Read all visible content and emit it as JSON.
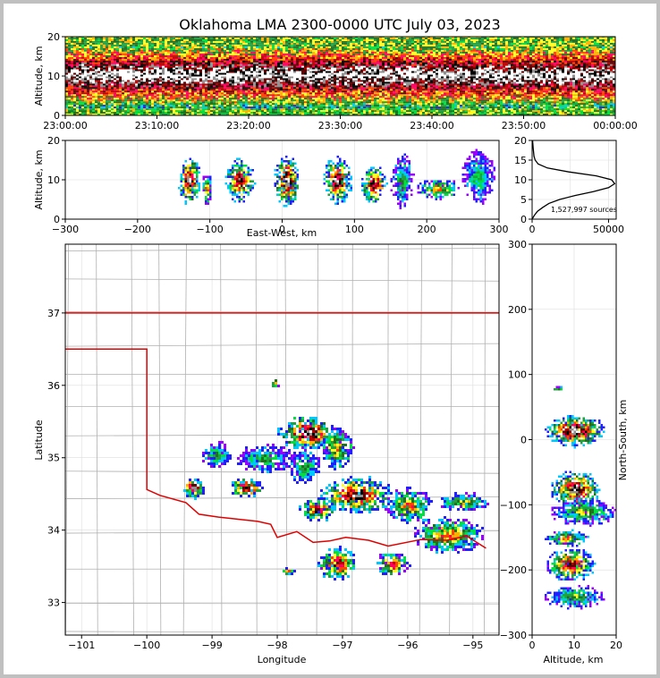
{
  "title": "Oklahoma LMA 2300-0000 UTC July 03, 2023",
  "colors": {
    "frame": "#c0c0c0",
    "state_border": "#e00000",
    "county": "#b0b0b0",
    "grid": "#dddddd",
    "density_scale": [
      "#9a00ff",
      "#2020ff",
      "#00c8ff",
      "#00e040",
      "#20a040",
      "#207020",
      "#ffff20",
      "#ffb000",
      "#ff4000",
      "#ff0060",
      "#c00000",
      "#600000",
      "#000000",
      "#909090",
      "#ffffff"
    ]
  },
  "chart_data": [
    {
      "id": "time-height",
      "type": "heatmap",
      "ylabel": "Altitude, km",
      "ylim": [
        0,
        20
      ],
      "yticks": [
        0,
        10,
        20
      ],
      "xticks": [
        "23:00:00",
        "23:10:00",
        "23:20:00",
        "23:30:00",
        "23:40:00",
        "23:50:00",
        "00:00:00"
      ],
      "dense_layer_km": [
        5,
        15
      ],
      "peak_altitude_km": 10
    },
    {
      "id": "ew-height",
      "type": "heatmap",
      "xlabel": "East-West, km",
      "ylabel": "Altitude, km",
      "xlim": [
        -300,
        300
      ],
      "ylim": [
        0,
        20
      ],
      "xticks": [
        -300,
        -200,
        -100,
        0,
        100,
        200,
        300
      ],
      "yticks": [
        0,
        10,
        20
      ],
      "cells": [
        {
          "x": -130,
          "z": 10,
          "w": 30,
          "h": 12,
          "v": 0.95
        },
        {
          "x": -105,
          "z": 8,
          "w": 12,
          "h": 8,
          "v": 0.55
        },
        {
          "x": -60,
          "z": 10,
          "w": 40,
          "h": 11,
          "v": 0.85
        },
        {
          "x": 5,
          "z": 10,
          "w": 35,
          "h": 13,
          "v": 0.98
        },
        {
          "x": 75,
          "z": 10,
          "w": 40,
          "h": 12,
          "v": 0.92
        },
        {
          "x": 125,
          "z": 9,
          "w": 35,
          "h": 10,
          "v": 0.88
        },
        {
          "x": 215,
          "z": 8,
          "w": 60,
          "h": 5,
          "v": 0.55
        },
        {
          "x": 270,
          "z": 11,
          "w": 45,
          "h": 14,
          "v": 0.3
        },
        {
          "x": 165,
          "z": 10,
          "w": 30,
          "h": 14,
          "v": 0.35
        }
      ]
    },
    {
      "id": "altitude-histogram",
      "type": "line",
      "xlim": [
        0,
        55000
      ],
      "ylim": [
        0,
        20
      ],
      "xticks": [
        0,
        50000
      ],
      "yticks": [
        0,
        5,
        10,
        15,
        20
      ],
      "annotation": "1,527,997 sources",
      "x": [
        0,
        1500,
        3500,
        7000,
        11000,
        18000,
        28000,
        40000,
        50000,
        54000,
        52000,
        42000,
        24000,
        10000,
        4000,
        2000,
        1200,
        700,
        300
      ],
      "y": [
        0,
        1,
        2,
        3,
        4,
        5,
        6,
        7,
        8,
        9,
        10,
        11,
        12,
        13,
        14,
        15,
        16,
        18,
        20
      ]
    },
    {
      "id": "plan-view",
      "type": "heatmap",
      "xlabel": "Longitude",
      "ylabel": "Latitude",
      "xlim": [
        -101.25,
        -94.6
      ],
      "ylim": [
        32.55,
        37.95
      ],
      "xticks": [
        -101,
        -100,
        -99,
        -98,
        -97,
        -96,
        -95
      ],
      "yticks": [
        33,
        34,
        35,
        36,
        37
      ],
      "cells": [
        {
          "lon": -99.3,
          "lat": 34.6,
          "w": 0.35,
          "h": 0.28,
          "v": 0.9
        },
        {
          "lon": -98.5,
          "lat": 34.6,
          "w": 0.55,
          "h": 0.25,
          "v": 0.85
        },
        {
          "lon": -97.55,
          "lat": 35.35,
          "w": 0.9,
          "h": 0.45,
          "v": 0.98
        },
        {
          "lon": -97.1,
          "lat": 35.15,
          "w": 0.5,
          "h": 0.6,
          "v": 0.55
        },
        {
          "lon": -96.8,
          "lat": 34.5,
          "w": 1.1,
          "h": 0.5,
          "v": 0.9
        },
        {
          "lon": -97.4,
          "lat": 34.3,
          "w": 0.55,
          "h": 0.3,
          "v": 0.8
        },
        {
          "lon": -96.0,
          "lat": 34.35,
          "w": 0.7,
          "h": 0.5,
          "v": 0.6
        },
        {
          "lon": -95.4,
          "lat": 33.95,
          "w": 1.1,
          "h": 0.5,
          "v": 0.6
        },
        {
          "lon": -95.15,
          "lat": 34.4,
          "w": 0.8,
          "h": 0.25,
          "v": 0.45
        },
        {
          "lon": -97.1,
          "lat": 33.55,
          "w": 0.6,
          "h": 0.45,
          "v": 0.8
        },
        {
          "lon": -96.25,
          "lat": 33.55,
          "w": 0.5,
          "h": 0.35,
          "v": 0.7
        },
        {
          "lon": -98.95,
          "lat": 35.05,
          "w": 0.45,
          "h": 0.35,
          "v": 0.35
        },
        {
          "lon": -98.2,
          "lat": 35.0,
          "w": 0.9,
          "h": 0.4,
          "v": 0.35
        },
        {
          "lon": -97.6,
          "lat": 34.9,
          "w": 0.5,
          "h": 0.5,
          "v": 0.35
        },
        {
          "lon": -97.85,
          "lat": 33.45,
          "w": 0.18,
          "h": 0.12,
          "v": 0.6
        },
        {
          "lon": -98.05,
          "lat": 36.05,
          "w": 0.1,
          "h": 0.12,
          "v": 0.5
        }
      ]
    },
    {
      "id": "ns-height",
      "type": "heatmap",
      "xlabel": "Altitude, km",
      "ylabel": "North-South, km",
      "xlim": [
        0,
        20
      ],
      "ylim": [
        -300,
        300
      ],
      "xticks": [
        0,
        10,
        20
      ],
      "yticks": [
        -300,
        -200,
        -100,
        0,
        100,
        200,
        300
      ],
      "cells": [
        {
          "z": 10,
          "y": 15,
          "w": 14,
          "h": 50,
          "v": 0.97
        },
        {
          "z": 10,
          "y": -75,
          "w": 12,
          "h": 55,
          "v": 0.96
        },
        {
          "z": 9,
          "y": -190,
          "w": 12,
          "h": 50,
          "v": 0.8
        },
        {
          "z": 8,
          "y": -150,
          "w": 10,
          "h": 25,
          "v": 0.6
        },
        {
          "z": 10,
          "y": -240,
          "w": 14,
          "h": 35,
          "v": 0.4
        },
        {
          "z": 6,
          "y": 80,
          "w": 4,
          "h": 6,
          "v": 0.35
        },
        {
          "z": 12,
          "y": -110,
          "w": 16,
          "h": 40,
          "v": 0.45
        }
      ]
    }
  ],
  "map_lines": {
    "state_border": [
      [
        -101.25,
        37.0
      ],
      [
        -94.6,
        37.0
      ]
    ],
    "panhandle_border": [
      [
        -101.25,
        36.5
      ],
      [
        -100.0,
        36.5
      ],
      [
        -100.0,
        34.56
      ],
      [
        -99.8,
        34.48
      ],
      [
        -99.4,
        34.38
      ],
      [
        -99.2,
        34.22
      ],
      [
        -98.9,
        34.18
      ],
      [
        -98.6,
        34.15
      ],
      [
        -98.3,
        34.12
      ],
      [
        -98.1,
        34.08
      ],
      [
        -98.0,
        33.9
      ],
      [
        -97.7,
        33.98
      ],
      [
        -97.45,
        33.83
      ],
      [
        -97.2,
        33.85
      ],
      [
        -96.95,
        33.9
      ],
      [
        -96.6,
        33.86
      ],
      [
        -96.3,
        33.78
      ],
      [
        -95.8,
        33.87
      ],
      [
        -95.4,
        33.86
      ],
      [
        -95.1,
        33.92
      ],
      [
        -94.8,
        33.75
      ]
    ]
  }
}
